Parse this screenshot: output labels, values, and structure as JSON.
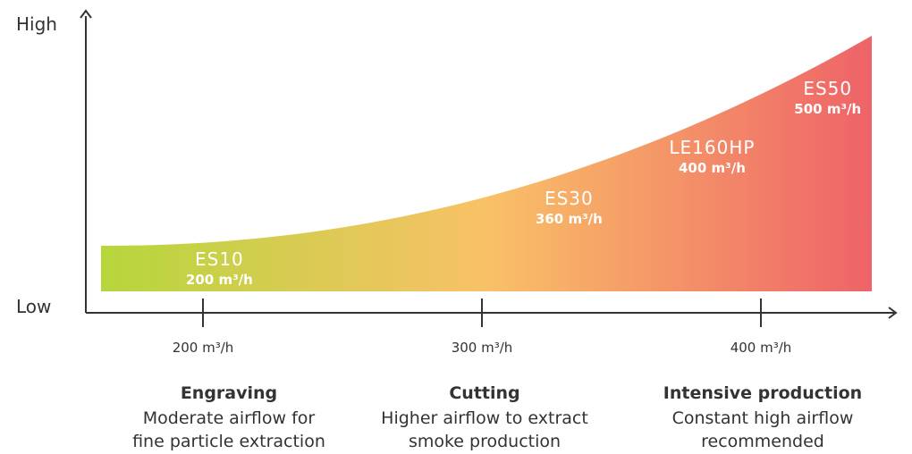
{
  "chart_data": {
    "type": "area",
    "y_axis": {
      "high_label": "High",
      "low_label": "Low"
    },
    "x_ticks": [
      {
        "value": 200,
        "label": "200 m³/h"
      },
      {
        "value": 300,
        "label": "300 m³/h"
      },
      {
        "value": 400,
        "label": "400 m³/h"
      }
    ],
    "xlim": [
      160,
      440
    ],
    "curve": {
      "start_level": 0.2,
      "end_level": 1.0
    },
    "gradient_colors": [
      "#b6d63c",
      "#f9c167",
      "#ee6368"
    ],
    "models": [
      {
        "name": "ES10",
        "flow": "200 m³/h",
        "x": 203
      },
      {
        "name": "ES30",
        "flow": "360 m³/h",
        "x": 330
      },
      {
        "name": "LE160HP",
        "flow": "400 m³/h",
        "x": 382
      },
      {
        "name": "ES50",
        "flow": "500 m³/h",
        "x": 424
      }
    ],
    "categories": [
      {
        "title": "Engraving",
        "desc1": "Moderate airflow for",
        "desc2": "fine particle extraction"
      },
      {
        "title": "Cutting",
        "desc1": "Higher airflow to extract",
        "desc2": "smoke production"
      },
      {
        "title": "Intensive production",
        "desc1": "Constant high airflow",
        "desc2": "recommended"
      }
    ]
  }
}
